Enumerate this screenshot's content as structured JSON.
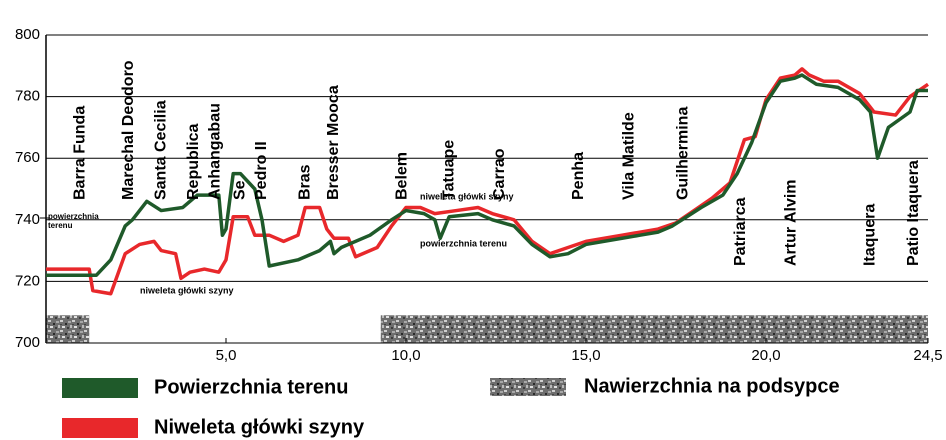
{
  "chart_data": {
    "type": "line",
    "xlim": [
      0,
      24.5
    ],
    "ylim": [
      700,
      800
    ],
    "xticks": [
      {
        "value": 5,
        "label": "5,0"
      },
      {
        "value": 10,
        "label": "10,0"
      },
      {
        "value": 15,
        "label": "15,0"
      },
      {
        "value": 20,
        "label": "20,0"
      },
      {
        "value": 24.5,
        "label": "24,5"
      }
    ],
    "yticks": [
      700,
      720,
      740,
      760,
      780,
      800
    ],
    "grid": true,
    "series": [
      {
        "name": "Powierzchnia terenu",
        "color": "#1f5a2a",
        "x": [
          0,
          1.0,
          1.4,
          1.8,
          2.2,
          2.4,
          2.8,
          3.2,
          3.8,
          4.2,
          4.8,
          4.9,
          5.0,
          5.2,
          5.4,
          5.8,
          6.0,
          6.2,
          7.0,
          7.6,
          7.9,
          8.0,
          8.2,
          9.0,
          9.6,
          10.0,
          10.5,
          10.8,
          10.95,
          11.2,
          12.0,
          12.4,
          13.0,
          13.5,
          14.0,
          14.5,
          15.0,
          16.0,
          16.5,
          17.0,
          17.4,
          17.8,
          18.2,
          18.8,
          19.2,
          19.6,
          20.0,
          20.4,
          20.8,
          21.0,
          21.4,
          22.0,
          22.6,
          22.9,
          23.1,
          23.4,
          24.0,
          24.2,
          24.5
        ],
        "values": [
          722,
          722,
          722,
          727,
          738,
          740,
          746,
          743,
          744,
          748,
          748,
          735,
          737,
          755,
          755,
          750,
          740,
          725,
          727,
          730,
          733,
          729,
          731,
          735,
          740,
          743,
          742,
          740,
          734,
          741,
          742,
          740,
          738,
          732,
          728,
          729,
          732,
          734,
          735,
          736,
          738,
          741,
          744,
          748,
          755,
          765,
          778,
          785,
          786,
          787,
          784,
          783,
          779,
          775,
          760,
          770,
          775,
          782,
          782
        ]
      },
      {
        "name": "Niweleta główki szyny",
        "color": "#e8282b",
        "x": [
          0,
          1.0,
          1.2,
          1.3,
          1.8,
          2.2,
          2.6,
          3.0,
          3.2,
          3.6,
          3.75,
          4.0,
          4.4,
          4.8,
          5.0,
          5.2,
          5.6,
          5.8,
          6.2,
          6.6,
          7.0,
          7.2,
          7.6,
          7.8,
          8.0,
          8.4,
          8.6,
          9.2,
          9.6,
          10.0,
          10.4,
          10.8,
          11.4,
          12.0,
          12.4,
          13.0,
          13.5,
          14.0,
          14.5,
          15.0,
          16.0,
          17.0,
          17.5,
          18.0,
          18.5,
          19.0,
          19.4,
          19.7,
          20.0,
          20.4,
          20.8,
          21.0,
          21.2,
          21.6,
          22.0,
          22.6,
          23.0,
          23.6,
          24.0,
          24.5
        ],
        "values": [
          724,
          724,
          724,
          717,
          716,
          729,
          732,
          733,
          730,
          729,
          721,
          723,
          724,
          723,
          727,
          741,
          741,
          735,
          735,
          733,
          735,
          744,
          744,
          737,
          734,
          734,
          728,
          731,
          738,
          744,
          744,
          742,
          743,
          744,
          742,
          740,
          733,
          729,
          731,
          733,
          735,
          737,
          739,
          743,
          747,
          752,
          766,
          767,
          779,
          786,
          787,
          789,
          787,
          785,
          785,
          781,
          775,
          774,
          780,
          784
        ]
      }
    ],
    "ballast": {
      "name": "Nawierzchnia na podsypce",
      "ranges": [
        [
          0,
          1.2
        ],
        [
          9.3,
          24.5
        ]
      ],
      "top": 709
    },
    "stations": [
      {
        "name": "Barra Funda",
        "km": 0.95
      },
      {
        "name": "Marechal Deodoro",
        "km": 2.3
      },
      {
        "name": "Santa Cecilia",
        "km": 3.2
      },
      {
        "name": "Republica",
        "km": 4.1
      },
      {
        "name": "Anhangabau",
        "km": 4.7
      },
      {
        "name": "Se",
        "km": 5.4
      },
      {
        "name": "Pedro II",
        "km": 6.0
      },
      {
        "name": "Bras",
        "km": 7.2
      },
      {
        "name": "Bresser Mooca",
        "km": 8.0
      },
      {
        "name": "Belem",
        "km": 9.9
      },
      {
        "name": "Tatuape",
        "km": 11.2
      },
      {
        "name": "Carrao",
        "km": 12.6
      },
      {
        "name": "Penha",
        "km": 14.8
      },
      {
        "name": "Vila Matilde",
        "km": 16.2
      },
      {
        "name": "Guilhermina",
        "km": 17.7
      },
      {
        "name": "Patriarca",
        "km": 19.3
      },
      {
        "name": "Artur Alvim",
        "km": 20.7
      },
      {
        "name": "Itaquera",
        "km": 22.9
      },
      {
        "name": "Patio Itaquera",
        "km": 24.1
      }
    ],
    "annotations": [
      "powierzchnia terenu",
      "niweleta główki szyny",
      "niweleta główki szyny",
      "powierzchnia terenu"
    ]
  }
}
